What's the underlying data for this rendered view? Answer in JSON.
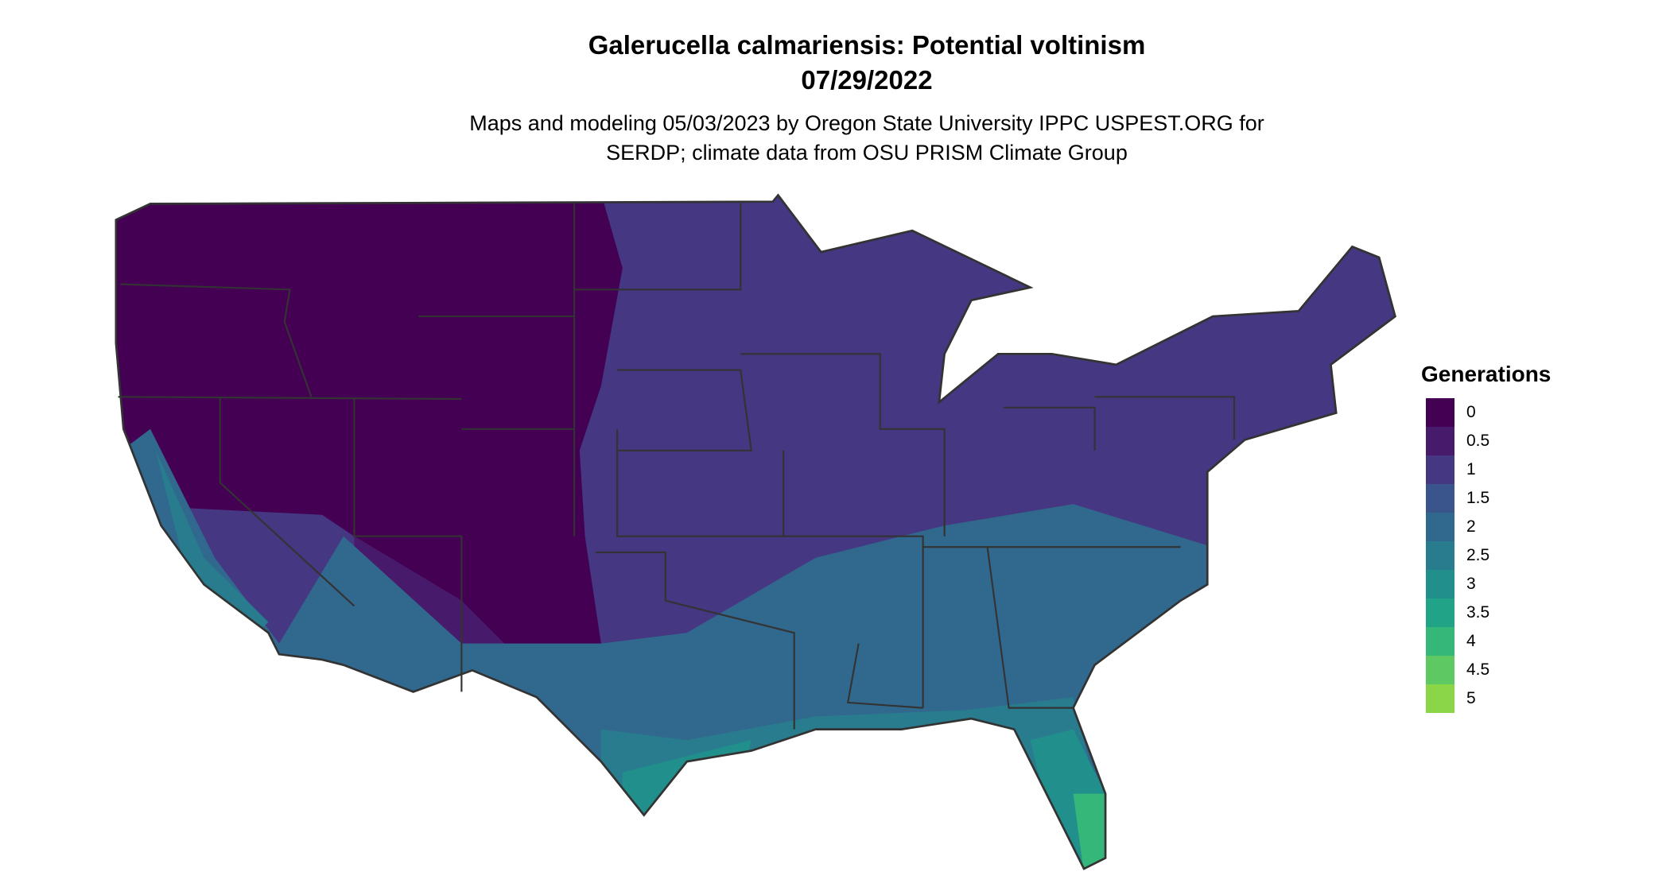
{
  "title": "Galerucella calmariensis: Potential voltinism",
  "date": "07/29/2022",
  "subtitle_line1": "Maps and modeling 05/03/2023 by Oregon State University IPPC USPEST.ORG for",
  "subtitle_line2": "SERDP; climate data from OSU PRISM Climate Group",
  "legend": {
    "title": "Generations",
    "items": [
      {
        "label": "0",
        "color": "#440154"
      },
      {
        "label": "0.5",
        "color": "#481a6c"
      },
      {
        "label": "1",
        "color": "#453781"
      },
      {
        "label": "1.5",
        "color": "#3a548c"
      },
      {
        "label": "2",
        "color": "#31688e"
      },
      {
        "label": "2.5",
        "color": "#287c8e"
      },
      {
        "label": "3",
        "color": "#21908d"
      },
      {
        "label": "3.5",
        "color": "#20a386"
      },
      {
        "label": "4",
        "color": "#35b779"
      },
      {
        "label": "4.5",
        "color": "#5ec962"
      },
      {
        "label": "5",
        "color": "#8bd646"
      }
    ]
  }
}
